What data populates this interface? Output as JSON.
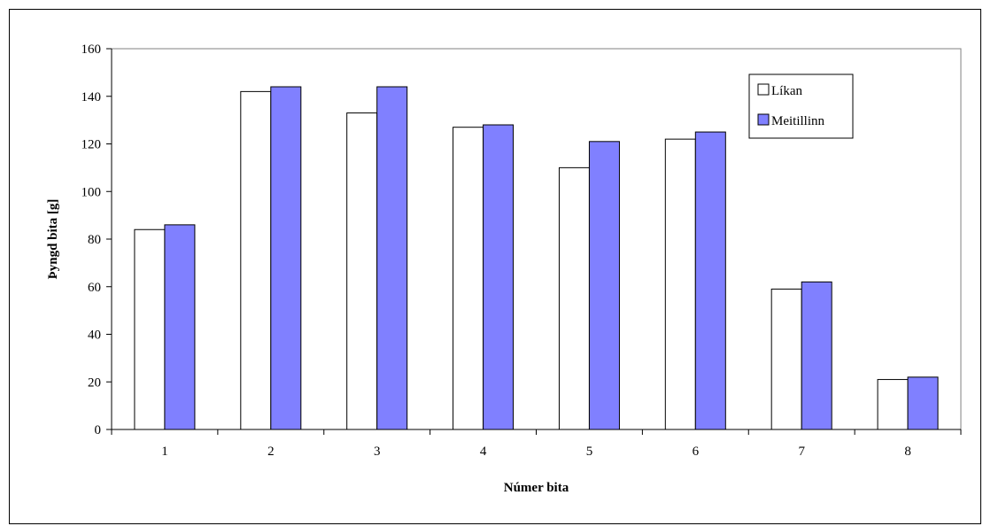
{
  "chart_data": {
    "type": "bar",
    "categories": [
      "1",
      "2",
      "3",
      "4",
      "5",
      "6",
      "7",
      "8"
    ],
    "series": [
      {
        "name": "Líkan",
        "values": [
          84,
          142,
          133,
          127,
          110,
          122,
          59,
          21
        ],
        "color": "#ffffff"
      },
      {
        "name": "Meitillinn",
        "values": [
          86,
          144,
          144,
          128,
          121,
          125,
          62,
          22
        ],
        "color": "#8080ff"
      }
    ],
    "title": "",
    "xlabel": "Númer bita",
    "ylabel": "Þyngd bita [g]",
    "ylim": [
      0,
      160
    ],
    "yticks": [
      0,
      20,
      40,
      60,
      80,
      100,
      120,
      140,
      160
    ],
    "grid": false,
    "legend_position": "top-right"
  }
}
